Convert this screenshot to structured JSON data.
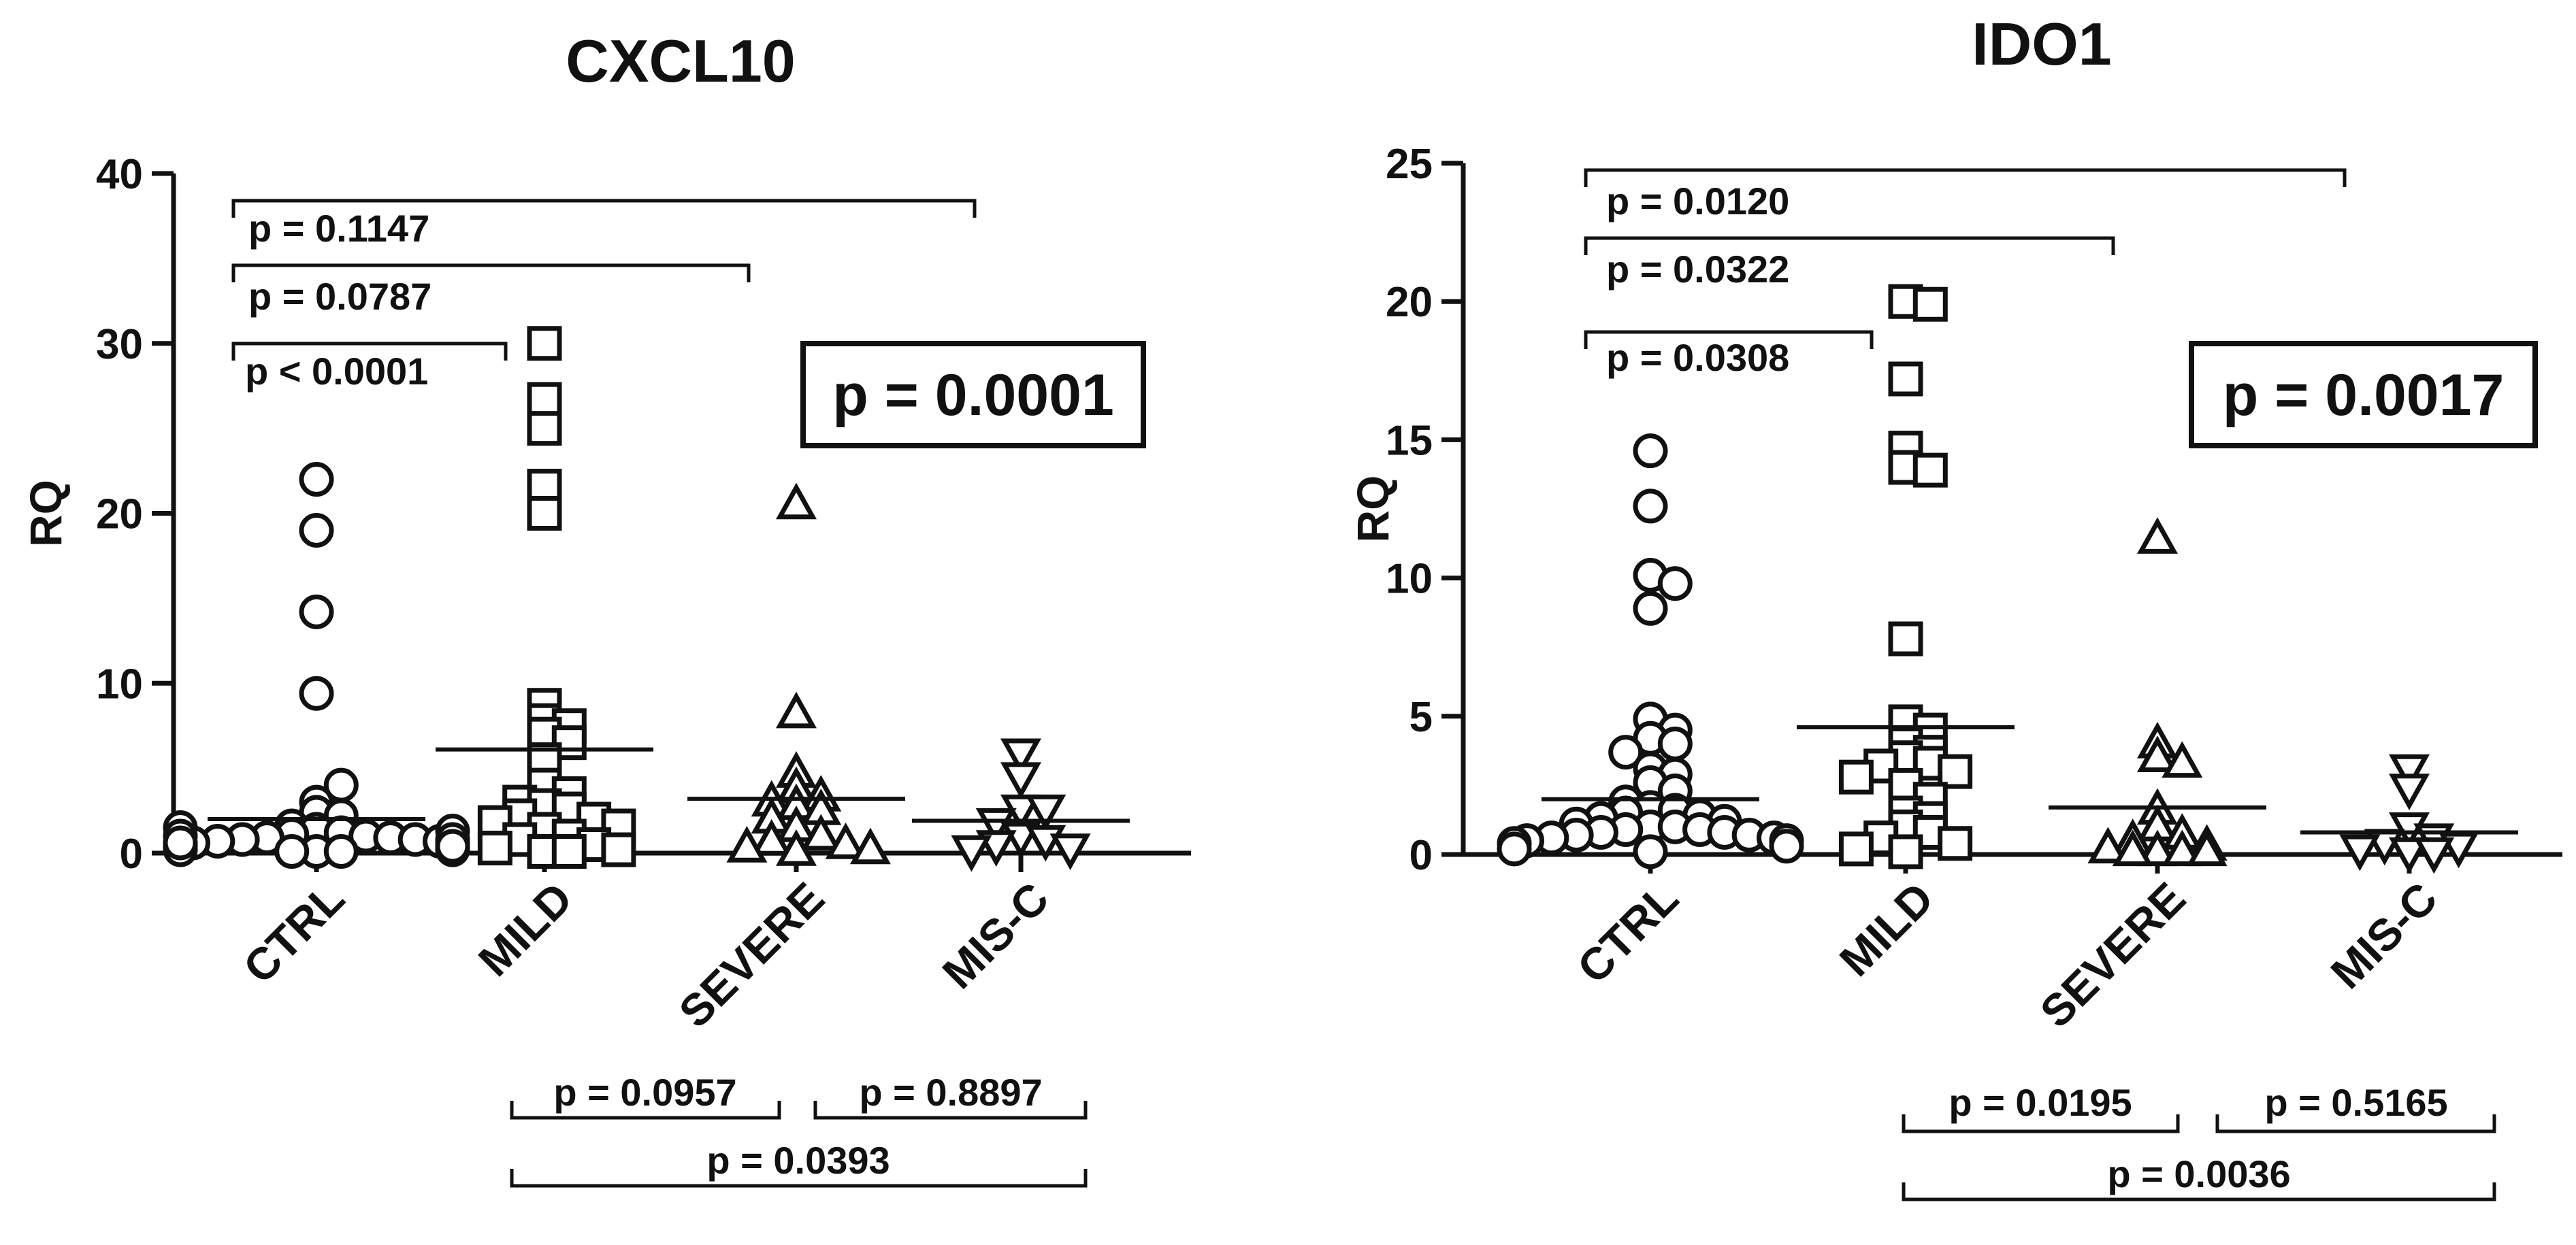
{
  "chart_data": [
    {
      "type": "scatter",
      "title": "CXCL10",
      "ylabel": "RQ",
      "xlabel": "",
      "ylim": [
        0,
        40
      ],
      "yticks": [
        0,
        10,
        20,
        30,
        40
      ],
      "categories": [
        "CTRL",
        "MILD",
        "SEVERE",
        "MIS-C"
      ],
      "markers": [
        "circle",
        "square",
        "triangle-up",
        "triangle-down"
      ],
      "groups": [
        {
          "name": "CTRL",
          "mean": 2.0,
          "values": [
            22.0,
            19.0,
            14.2,
            9.4,
            3.0,
            2.4,
            2.2,
            4.0,
            1.6,
            1.4,
            1.2,
            1.1,
            1.0,
            0.9,
            0.9,
            0.8,
            0.8,
            0.7,
            0.7,
            0.6,
            0.6,
            0.5,
            0.5,
            0.4,
            0.4,
            0.3,
            0.3,
            0.3,
            0.2,
            0.2,
            0.2,
            0.1,
            0.1,
            0.1,
            1.5,
            1.3,
            1.0,
            0.8,
            0.6,
            0.4
          ]
        },
        {
          "name": "MILD",
          "mean": 6.1,
          "values": [
            30.0,
            26.7,
            25.0,
            21.6,
            20.0,
            8.7,
            7.8,
            7.5,
            7.0,
            6.5,
            5.5,
            4.0,
            3.5,
            3.0,
            2.8,
            2.6,
            2.2,
            2.0,
            1.8,
            1.6,
            1.4,
            1.0,
            0.8,
            0.5,
            0.3,
            0.2,
            0.1,
            0.1
          ]
        },
        {
          "name": "SEVERE",
          "mean": 3.2,
          "values": [
            20.5,
            8.2,
            4.7,
            3.8,
            3.3,
            3.0,
            2.8,
            2.5,
            2.0,
            1.5,
            1.0,
            0.7,
            0.5,
            0.3,
            0.2,
            0.1
          ]
        },
        {
          "name": "MIS-C",
          "mean": 1.9,
          "values": [
            5.9,
            4.5,
            2.6,
            2.6,
            1.8,
            1.0,
            0.8,
            0.5,
            0.3,
            0.2
          ]
        }
      ],
      "overall_p": "p = 0.0001",
      "comparisons_top": [
        {
          "label": "p < 0.0001",
          "from": "CTRL",
          "to": "MILD"
        },
        {
          "label": "p = 0.0787",
          "from": "CTRL",
          "to": "SEVERE"
        },
        {
          "label": "p = 0.1147",
          "from": "CTRL",
          "to": "MIS-C"
        }
      ],
      "comparisons_bottom": [
        {
          "label": "p = 0.0957",
          "from": "MILD",
          "to": "SEVERE"
        },
        {
          "label": "p = 0.8897",
          "from": "SEVERE",
          "to": "MIS-C"
        },
        {
          "label": "p = 0.0393",
          "from": "MILD",
          "to": "MIS-C"
        }
      ]
    },
    {
      "type": "scatter",
      "title": "IDO1",
      "ylabel": "RQ",
      "xlabel": "",
      "ylim": [
        0,
        25
      ],
      "yticks": [
        0,
        5,
        10,
        15,
        20,
        25
      ],
      "categories": [
        "CTRL",
        "MILD",
        "SEVERE",
        "MIS-C"
      ],
      "markers": [
        "circle",
        "square",
        "triangle-up",
        "triangle-down"
      ],
      "groups": [
        {
          "name": "CTRL",
          "mean": 2.0,
          "values": [
            14.6,
            12.6,
            10.1,
            9.8,
            8.9,
            4.9,
            4.5,
            4.2,
            4.0,
            3.7,
            3.1,
            2.9,
            2.6,
            2.3,
            1.9,
            1.7,
            1.6,
            1.5,
            1.4,
            1.3,
            1.2,
            1.1,
            1.0,
            1.0,
            0.9,
            0.9,
            0.8,
            0.8,
            0.7,
            0.7,
            0.6,
            0.6,
            0.5,
            0.5,
            0.4,
            0.3,
            0.2,
            0.1
          ]
        },
        {
          "name": "MILD",
          "mean": 4.6,
          "values": [
            20.0,
            19.9,
            17.2,
            14.7,
            14.0,
            13.9,
            7.8,
            4.8,
            4.5,
            4.0,
            3.7,
            3.5,
            3.3,
            3.2,
            3.0,
            2.8,
            2.5,
            2.0,
            1.5,
            1.3,
            1.0,
            0.8,
            0.6,
            0.4,
            0.2,
            0.1
          ]
        },
        {
          "name": "SEVERE",
          "mean": 1.7,
          "values": [
            11.4,
            4.0,
            3.5,
            3.3,
            1.6,
            1.0,
            0.7,
            0.5,
            0.3,
            0.2,
            0.1,
            0.1,
            0.1,
            0.1
          ]
        },
        {
          "name": "MIS-C",
          "mean": 0.8,
          "values": [
            3.1,
            2.4,
            1.0,
            0.6,
            0.4,
            0.3,
            0.2,
            0.1,
            0.1
          ]
        }
      ],
      "overall_p": "p = 0.0017",
      "comparisons_top": [
        {
          "label": "p = 0.0308",
          "from": "CTRL",
          "to": "MILD"
        },
        {
          "label": "p = 0.0322",
          "from": "CTRL",
          "to": "SEVERE"
        },
        {
          "label": "p = 0.0120",
          "from": "CTRL",
          "to": "MIS-C"
        }
      ],
      "comparisons_bottom": [
        {
          "label": "p = 0.0195",
          "from": "MILD",
          "to": "SEVERE"
        },
        {
          "label": "p = 0.5165",
          "from": "SEVERE",
          "to": "MIS-C"
        },
        {
          "label": "p = 0.0036",
          "from": "MILD",
          "to": "MIS-C"
        }
      ]
    }
  ]
}
